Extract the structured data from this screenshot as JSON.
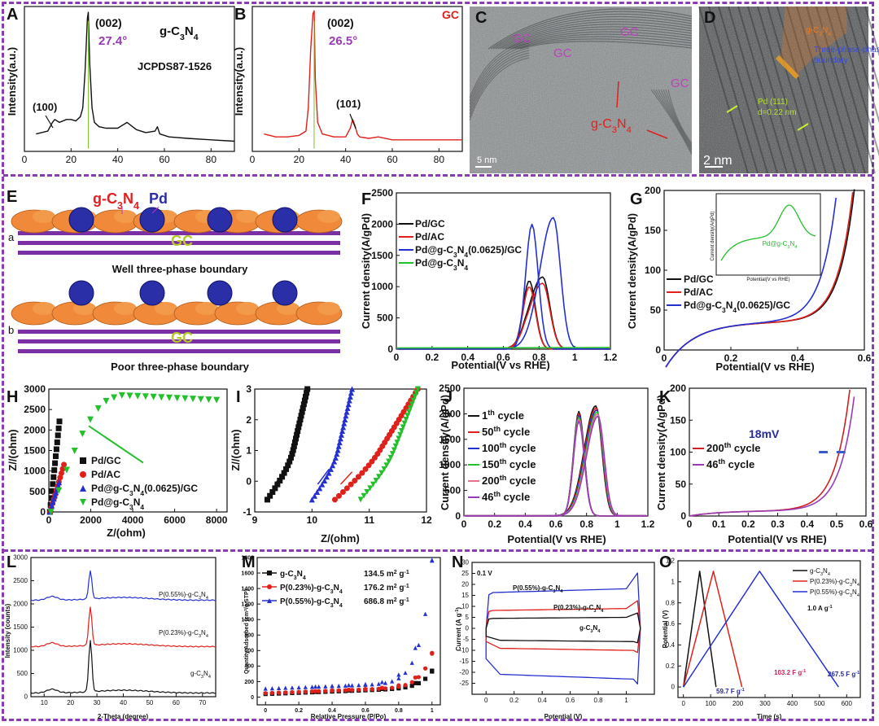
{
  "panels": {
    "A": {
      "letter": "A",
      "title": "g-C3N4",
      "ref": "JCPDS87-1526",
      "peak_label": "(002)",
      "peak_value": "27.4°",
      "low_peak": "(100)",
      "ylabel": "Intensity(a.u.)"
    },
    "B": {
      "letter": "B",
      "title": "GC",
      "peak_label": "(002)",
      "peak_value": "26.5°",
      "small_peak": "(101)",
      "ylabel": "Intensity(a.u.)"
    },
    "C": {
      "letter": "C",
      "labels": [
        "GC",
        "GC",
        "GC",
        "GC"
      ],
      "g_label": "g-C3N4",
      "scale": "5 nm"
    },
    "D": {
      "letter": "D",
      "pd_label": "Pd (111)",
      "pd_d": "d=0.22 nm",
      "g_label": "g-C3N4",
      "boundary": "Three-phase boundary",
      "scale": "2 nm"
    },
    "E": {
      "letter": "E",
      "g_label": "g-C3N4",
      "pd_label": "Pd",
      "gc": "GC",
      "a": "a",
      "b": "b",
      "well": "Well three-phase boundary",
      "poor": "Poor three-phase boundary"
    },
    "F": {
      "letter": "F",
      "xlabel": "Potential(V vs RHE)",
      "ylabel": "Current density(A/gPd)",
      "legend": [
        "Pd/GC",
        "Pd/AC",
        "Pd@g-C3N4(0.0625)/GC",
        "Pd@g-C3N4"
      ]
    },
    "G": {
      "letter": "G",
      "xlabel": "Potential(V vs RHE)",
      "ylabel": "Current density(A/gPd)",
      "legend": [
        "Pd/GC",
        "Pd/AC",
        "Pd@g-C3N4(0.0625)/GC"
      ],
      "inset_label": "Pd@g-C3N4",
      "inset_xlabel": "Potential(V vs RHE)",
      "inset_ylabel": "Current density(A/gPd)"
    },
    "H": {
      "letter": "H",
      "xlabel": "Z/(ohm)",
      "ylabel": "Z//(ohm)",
      "legend": [
        "Pd/GC",
        "Pd/AC",
        "Pd@g-C3N4(0.0625)/GC",
        "Pd@g-C3N4"
      ]
    },
    "I": {
      "letter": "I",
      "xlabel": "Z/(ohm)",
      "ylabel": "Z//(ohm)"
    },
    "J": {
      "letter": "J",
      "xlabel": "Potential(V vs RHE)",
      "ylabel": "Current density(A/gPd)",
      "legend": [
        "1th cycle",
        "50th cycle",
        "100th cycle",
        "150th cycle",
        "200th cycle",
        "46th cycle"
      ]
    },
    "K": {
      "letter": "K",
      "xlabel": "Potential(V vs RHE)",
      "ylabel": "Current density(A/gPd)",
      "legend": [
        "200th cycle",
        "46th cycle"
      ],
      "shift": "18mV"
    },
    "L": {
      "letter": "L",
      "xlabel": "2-Theta (degree)",
      "ylabel": "Intensity (counts)",
      "labels": [
        "P(0.55%)-g-C3N4",
        "P(0.23%)-g-C3N4",
        "g-C3N4"
      ]
    },
    "M": {
      "letter": "M",
      "xlabel": "Relative Pressure (P/Po)",
      "ylabel": "Quantity Adsorbed (cm3/g STP)",
      "legend": [
        "g-C3N4",
        "P(0.23%)-g-C3N4",
        "P(0.55%)-g-C3N4"
      ],
      "areas": [
        "134.5 m2 g-1",
        "176.2 m2 g-1",
        "686.8 m2 g-1"
      ]
    },
    "N": {
      "letter": "N",
      "xlabel": "Potential (V)",
      "ylabel": "Current (A g-1)",
      "rate": "0.1 V s-1",
      "labels": [
        "P(0.55%)-g-C3N4",
        "P(0.23%)-g-C3N4",
        "g-C3N4"
      ]
    },
    "O": {
      "letter": "O",
      "xlabel": "Time (s)",
      "ylabel": "Potential (V)",
      "legend": [
        "g-C3N4",
        "P(0.23%)-g-C3N4",
        "P(0.55%)-g-C3N4"
      ],
      "current": "1.0 A g-1",
      "caps": [
        "59.7 F g-1",
        "103.2 F g-1",
        "267.5 F g-1"
      ]
    }
  },
  "colors": {
    "black": "#111111",
    "red": "#e0201b",
    "blue": "#2530d0",
    "green": "#22c02a",
    "purple": "#9a3bb5",
    "magenta": "#8e3bb0",
    "orange": "#f07a1c",
    "navy": "#262a9c"
  },
  "chart_data": [
    {
      "type": "line",
      "id": "A",
      "xlim": [
        0,
        90
      ],
      "ylim": [
        0,
        1
      ],
      "xticks": [
        0,
        20,
        40,
        60,
        80
      ],
      "series": [
        {
          "name": "g-C3N4",
          "x": [
            5,
            10,
            12,
            13,
            15,
            18,
            20,
            22,
            24,
            25,
            26,
            27,
            27.4,
            28,
            29,
            30,
            32,
            35,
            40,
            44,
            48,
            52,
            56,
            57,
            58,
            62,
            70,
            80,
            90
          ],
          "y": [
            0.12,
            0.14,
            0.2,
            0.22,
            0.2,
            0.22,
            0.22,
            0.21,
            0.24,
            0.3,
            0.55,
            0.92,
            0.96,
            0.6,
            0.3,
            0.2,
            0.17,
            0.16,
            0.16,
            0.2,
            0.15,
            0.13,
            0.14,
            0.17,
            0.12,
            0.1,
            0.09,
            0.08,
            0.07
          ]
        }
      ]
    },
    {
      "type": "line",
      "id": "B",
      "xlim": [
        0,
        90
      ],
      "ylim": [
        0,
        1
      ],
      "xticks": [
        0,
        20,
        40,
        60,
        80
      ],
      "series": [
        {
          "name": "GC",
          "x": [
            5,
            10,
            15,
            20,
            23,
            24,
            25,
            26,
            26.5,
            27,
            28,
            30,
            35,
            40,
            42,
            43,
            44,
            45,
            46,
            50,
            54,
            60,
            70,
            80,
            90
          ],
          "y": [
            0.12,
            0.1,
            0.1,
            0.11,
            0.14,
            0.3,
            0.7,
            0.95,
            0.97,
            0.5,
            0.2,
            0.12,
            0.1,
            0.1,
            0.16,
            0.22,
            0.18,
            0.12,
            0.1,
            0.09,
            0.1,
            0.08,
            0.08,
            0.08,
            0.08
          ]
        }
      ]
    },
    {
      "type": "line",
      "id": "F",
      "xlim": [
        0,
        1.2
      ],
      "ylim": [
        0,
        2500
      ],
      "xticks": [
        0,
        0.2,
        0.4,
        0.6,
        0.8,
        1.0,
        1.2
      ],
      "yticks": [
        0,
        500,
        1000,
        1500,
        2000,
        2500
      ]
    },
    {
      "type": "line",
      "id": "G",
      "xlim": [
        0,
        0.6
      ],
      "ylim": [
        0,
        200
      ],
      "xticks": [
        0,
        0.2,
        0.4,
        0.6
      ],
      "yticks": [
        0,
        50,
        100,
        150,
        200
      ]
    },
    {
      "type": "scatter",
      "id": "H",
      "xlim": [
        0,
        8500
      ],
      "ylim": [
        0,
        3000
      ],
      "xticks": [
        0,
        2000,
        4000,
        6000,
        8000
      ],
      "yticks": [
        0,
        500,
        1000,
        1500,
        2000,
        2500,
        3000
      ]
    },
    {
      "type": "scatter",
      "id": "I",
      "xlim": [
        9,
        12
      ],
      "ylim": [
        -1,
        3
      ],
      "xticks": [
        9,
        10,
        11,
        12
      ],
      "yticks": [
        -1,
        0,
        1,
        2,
        3
      ]
    },
    {
      "type": "line",
      "id": "J",
      "xlim": [
        0,
        1.2
      ],
      "ylim": [
        0,
        2500
      ],
      "xticks": [
        0,
        0.2,
        0.4,
        0.6,
        0.8,
        1.0,
        1.2
      ],
      "yticks": [
        0,
        500,
        1000,
        1500,
        2000,
        2500
      ]
    },
    {
      "type": "line",
      "id": "K",
      "xlim": [
        0,
        0.6
      ],
      "ylim": [
        0,
        200
      ],
      "xticks": [
        0,
        0.1,
        0.2,
        0.3,
        0.4,
        0.5,
        0.6
      ],
      "yticks": [
        0,
        50,
        100,
        150,
        200
      ]
    },
    {
      "type": "line",
      "id": "L",
      "xlim": [
        5,
        75
      ],
      "ylim": [
        0,
        3000
      ],
      "xticks": [
        10,
        20,
        30,
        40,
        50,
        60,
        70
      ],
      "yticks": [
        0,
        500,
        1000,
        1500,
        2000,
        2500,
        3000
      ]
    },
    {
      "type": "line",
      "id": "M",
      "xlim": [
        -0.05,
        1.05
      ],
      "ylim": [
        -100,
        1800
      ],
      "xticks": [
        0,
        0.2,
        0.4,
        0.6,
        0.8,
        1.0
      ],
      "yticks": [
        0,
        200,
        400,
        600,
        800,
        1000,
        1200,
        1400,
        1600,
        1800
      ]
    },
    {
      "type": "line",
      "id": "N",
      "xlim": [
        -0.1,
        1.2
      ],
      "ylim": [
        -30,
        30
      ],
      "xticks": [
        0,
        0.2,
        0.4,
        0.6,
        0.8,
        1.0
      ],
      "yticks": [
        -25,
        -20,
        -15,
        -10,
        -5,
        0,
        5,
        10,
        15,
        20,
        25,
        30
      ]
    },
    {
      "type": "line",
      "id": "O",
      "xlim": [
        -20,
        650
      ],
      "ylim": [
        -0.1,
        1.2
      ],
      "xticks": [
        0,
        100,
        200,
        300,
        400,
        500,
        600
      ],
      "yticks": [
        0,
        0.2,
        0.4,
        0.6,
        0.8,
        1.0,
        1.2
      ]
    }
  ]
}
